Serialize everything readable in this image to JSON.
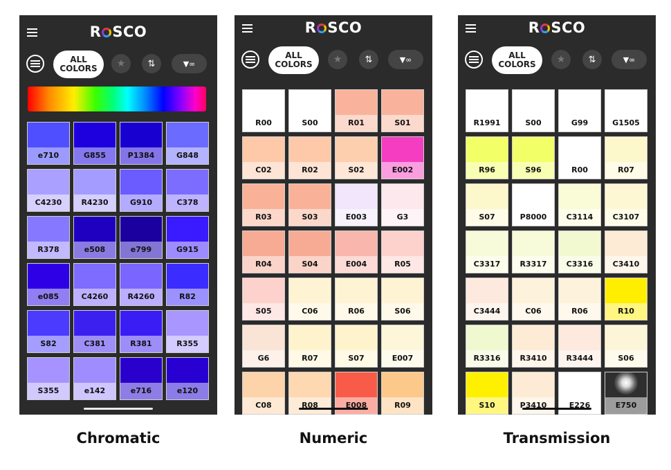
{
  "logo": "ROSCO",
  "toolbar": {
    "all_colors": "ALL COLORS",
    "sort_icon": "sort-arrows-icon",
    "filter_icon": "filter-infinity-icon",
    "favorites_icon": "star-icon"
  },
  "panels": [
    {
      "caption": "Chromatic",
      "swatches": [
        {
          "code": "e710",
          "top": "#4f4fff",
          "bottom": "#9a9aff"
        },
        {
          "code": "G855",
          "top": "#1d00dd",
          "bottom": "#8577ee"
        },
        {
          "code": "P1384",
          "top": "#1800d0",
          "bottom": "#8374e8"
        },
        {
          "code": "G848",
          "top": "#6b6bff",
          "bottom": "#b3b3ff"
        },
        {
          "code": "C4230",
          "top": "#a9a0ff",
          "bottom": "#d6d0ff"
        },
        {
          "code": "R4230",
          "top": "#a49cff",
          "bottom": "#d4cfff"
        },
        {
          "code": "G910",
          "top": "#6a5cff",
          "bottom": "#b3abff"
        },
        {
          "code": "C378",
          "top": "#7d6dff",
          "bottom": "#bdb3ff"
        },
        {
          "code": "R378",
          "top": "#8779ff",
          "bottom": "#c2b9ff"
        },
        {
          "code": "e508",
          "top": "#1f00c0",
          "bottom": "#8a7be2"
        },
        {
          "code": "e799",
          "top": "#1b009f",
          "bottom": "#8275d4"
        },
        {
          "code": "G915",
          "top": "#3a1aff",
          "bottom": "#9c8cff"
        },
        {
          "code": "e085",
          "top": "#2e00e6",
          "bottom": "#907ef2"
        },
        {
          "code": "C4260",
          "top": "#7e6bff",
          "bottom": "#bdb1ff"
        },
        {
          "code": "R4260",
          "top": "#7a66ff",
          "bottom": "#bbaeff"
        },
        {
          "code": "R82",
          "top": "#3b2cff",
          "bottom": "#9b92ff"
        },
        {
          "code": "S82",
          "top": "#4a3bff",
          "bottom": "#a59dff"
        },
        {
          "code": "C381",
          "top": "#3c20f0",
          "bottom": "#9e8ff7"
        },
        {
          "code": "R381",
          "top": "#3a1cf5",
          "bottom": "#9c8df9"
        },
        {
          "code": "R355",
          "top": "#a997ff",
          "bottom": "#d4cbff"
        },
        {
          "code": "S355",
          "top": "#a693ff",
          "bottom": "#d2c9ff"
        },
        {
          "code": "e142",
          "top": "#9f8cff",
          "bottom": "#cfc6ff"
        },
        {
          "code": "e716",
          "top": "#2a00cc",
          "bottom": "#8e7de6"
        },
        {
          "code": "e120",
          "top": "#2800d2",
          "bottom": "#8c7ce8"
        }
      ]
    },
    {
      "caption": "Numeric",
      "swatches": [
        {
          "code": "R00",
          "top": "#ffffff",
          "bottom": "#ffffff"
        },
        {
          "code": "S00",
          "top": "#ffffff",
          "bottom": "#ffffff"
        },
        {
          "code": "R01",
          "top": "#f9b39c",
          "bottom": "#fcd9cd"
        },
        {
          "code": "S01",
          "top": "#f9b39c",
          "bottom": "#fcd9cd"
        },
        {
          "code": "C02",
          "top": "#fdc9a8",
          "bottom": "#fee4d4"
        },
        {
          "code": "R02",
          "top": "#fdc9a8",
          "bottom": "#fee4d4"
        },
        {
          "code": "S02",
          "top": "#fdcfae",
          "bottom": "#fee7d7"
        },
        {
          "code": "E002",
          "top": "#f53dc2",
          "bottom": "#fa9ee0"
        },
        {
          "code": "R03",
          "top": "#f9b298",
          "bottom": "#fcd8cb"
        },
        {
          "code": "S03",
          "top": "#f9b298",
          "bottom": "#fcd8cb"
        },
        {
          "code": "E003",
          "top": "#f1e6fb",
          "bottom": "#f8f2fd"
        },
        {
          "code": "G3",
          "top": "#fde8ee",
          "bottom": "#fef3f6"
        },
        {
          "code": "R04",
          "top": "#f7aa94",
          "bottom": "#fbd4c9"
        },
        {
          "code": "S04",
          "top": "#f7aa94",
          "bottom": "#fbd4c9"
        },
        {
          "code": "E004",
          "top": "#f9b6ad",
          "bottom": "#fcdad6"
        },
        {
          "code": "R05",
          "top": "#fdd2cc",
          "bottom": "#fee8e5"
        },
        {
          "code": "S05",
          "top": "#fdd2cc",
          "bottom": "#fee8e5"
        },
        {
          "code": "C06",
          "top": "#fef4d4",
          "bottom": "#fff9ea"
        },
        {
          "code": "R06",
          "top": "#fef4d4",
          "bottom": "#fff9ea"
        },
        {
          "code": "S06",
          "top": "#fef4d4",
          "bottom": "#fff9ea"
        },
        {
          "code": "G6",
          "top": "#fae4d6",
          "bottom": "#fdf1ea"
        },
        {
          "code": "R07",
          "top": "#fef3cc",
          "bottom": "#fff9e6"
        },
        {
          "code": "S07",
          "top": "#fef3cc",
          "bottom": "#fff9e6"
        },
        {
          "code": "E007",
          "top": "#fdf6d9",
          "bottom": "#fefaec"
        },
        {
          "code": "C08",
          "top": "#fdd3a9",
          "bottom": "#fee9d4"
        },
        {
          "code": "R08",
          "top": "#fdd8b0",
          "bottom": "#feebd7"
        },
        {
          "code": "E008",
          "top": "#f85c48",
          "bottom": "#fcada3"
        },
        {
          "code": "R09",
          "top": "#fdc98a",
          "bottom": "#fee4c4"
        }
      ]
    },
    {
      "caption": "Transmission",
      "swatches": [
        {
          "code": "R1991",
          "top": "#ffffff",
          "bottom": "#ffffff"
        },
        {
          "code": "S00",
          "top": "#ffffff",
          "bottom": "#ffffff"
        },
        {
          "code": "G99",
          "top": "#ffffff",
          "bottom": "#ffffff"
        },
        {
          "code": "G1505",
          "top": "#ffffff",
          "bottom": "#ffffff"
        },
        {
          "code": "R96",
          "top": "#f3ff66",
          "bottom": "#f9ffb2"
        },
        {
          "code": "S96",
          "top": "#f3ff66",
          "bottom": "#f9ffb2"
        },
        {
          "code": "R00",
          "top": "#ffffff",
          "bottom": "#ffffff"
        },
        {
          "code": "R07",
          "top": "#fdf7cc",
          "bottom": "#fefbe6"
        },
        {
          "code": "S07",
          "top": "#fdf7cc",
          "bottom": "#fefbe6"
        },
        {
          "code": "P8000",
          "top": "#ffffff",
          "bottom": "#ffffff"
        },
        {
          "code": "C3114",
          "top": "#fafbd7",
          "bottom": "#fdfdeb"
        },
        {
          "code": "C3107",
          "top": "#fdf8d3",
          "bottom": "#fefce9"
        },
        {
          "code": "C3317",
          "top": "#f8fbd9",
          "bottom": "#fcfdec"
        },
        {
          "code": "R3317",
          "top": "#f8fbd9",
          "bottom": "#fcfdec"
        },
        {
          "code": "C3316",
          "top": "#f2f9d0",
          "bottom": "#f9fce8"
        },
        {
          "code": "C3410",
          "top": "#fdebd6",
          "bottom": "#fef5eb"
        },
        {
          "code": "C3444",
          "top": "#fde9dd",
          "bottom": "#fef4ee"
        },
        {
          "code": "C06",
          "top": "#fdf2db",
          "bottom": "#fef8ed"
        },
        {
          "code": "R06",
          "top": "#fdf2db",
          "bottom": "#fef8ed"
        },
        {
          "code": "R10",
          "top": "#ffee00",
          "bottom": "#fff680"
        },
        {
          "code": "R3316",
          "top": "#f0f8d0",
          "bottom": "#f8fbe8"
        },
        {
          "code": "R3410",
          "top": "#fdebd6",
          "bottom": "#fef5eb"
        },
        {
          "code": "R3444",
          "top": "#fde9dd",
          "bottom": "#fef4ee"
        },
        {
          "code": "S06",
          "top": "#fdf5d8",
          "bottom": "#fefaec"
        },
        {
          "code": "S10",
          "top": "#fff000",
          "bottom": "#fff780"
        },
        {
          "code": "P3410",
          "top": "#fdebd6",
          "bottom": "#fef5eb"
        },
        {
          "code": "E226",
          "top": "#ffffff",
          "bottom": "#ffffff"
        },
        {
          "code": "E750",
          "top": "#2f2f2f",
          "bottom": "#9c9c9c"
        }
      ]
    }
  ]
}
